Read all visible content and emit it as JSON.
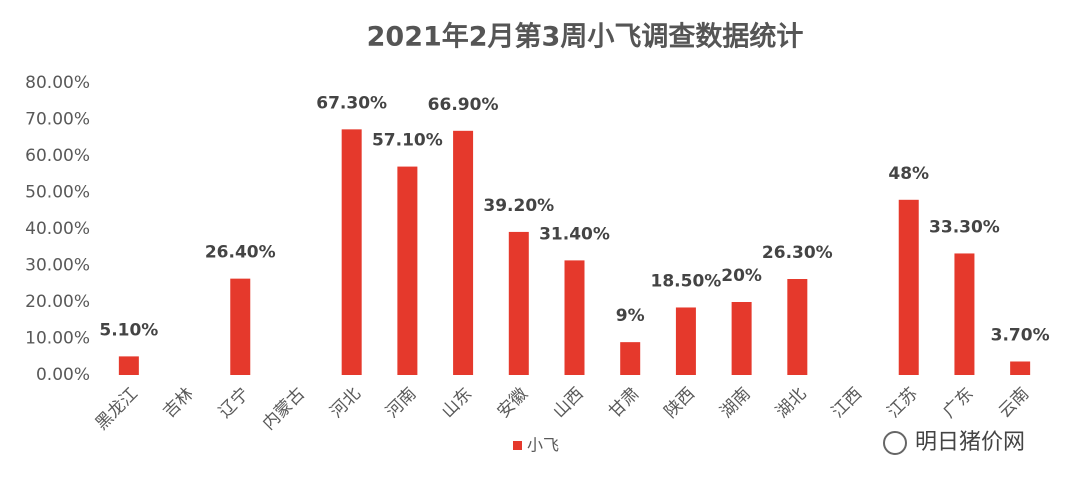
{
  "chart_data": {
    "type": "bar",
    "title": "2021年2月第3周小飞调查数据统计",
    "categories": [
      "黑龙江",
      "吉林",
      "辽宁",
      "内蒙古",
      "河北",
      "河南",
      "山东",
      "安徽",
      "山西",
      "甘肃",
      "陕西",
      "湖南",
      "湖北",
      "江西",
      "江苏",
      "广东",
      "云南"
    ],
    "series": [
      {
        "name": "小飞",
        "color": "#e5392c",
        "values": [
          5.1,
          null,
          26.4,
          null,
          67.3,
          57.1,
          66.9,
          39.2,
          31.4,
          9,
          18.5,
          20,
          26.3,
          null,
          48,
          33.3,
          3.7
        ],
        "value_labels": [
          "5.10%",
          null,
          "26.40%",
          null,
          "67.30%",
          "57.10%",
          "66.90%",
          "39.20%",
          "31.40%",
          "9%",
          "18.50%",
          "20%",
          "26.30%",
          null,
          "48%",
          "33.30%",
          "3.70%"
        ]
      }
    ],
    "ylim": [
      0,
      80
    ],
    "yticks": [
      {
        "value": 0,
        "label": "0.00%"
      },
      {
        "value": 10,
        "label": "10.00%"
      },
      {
        "value": 20,
        "label": "20.00%"
      },
      {
        "value": 30,
        "label": "30.00%"
      },
      {
        "value": 40,
        "label": "40.00%"
      },
      {
        "value": 50,
        "label": "50.00%"
      },
      {
        "value": 60,
        "label": "60.00%"
      },
      {
        "value": 70,
        "label": "70.00%"
      },
      {
        "value": 80,
        "label": "80.00%"
      }
    ],
    "grid": false,
    "legend": "bottom",
    "watermark": "明日猪价网"
  }
}
